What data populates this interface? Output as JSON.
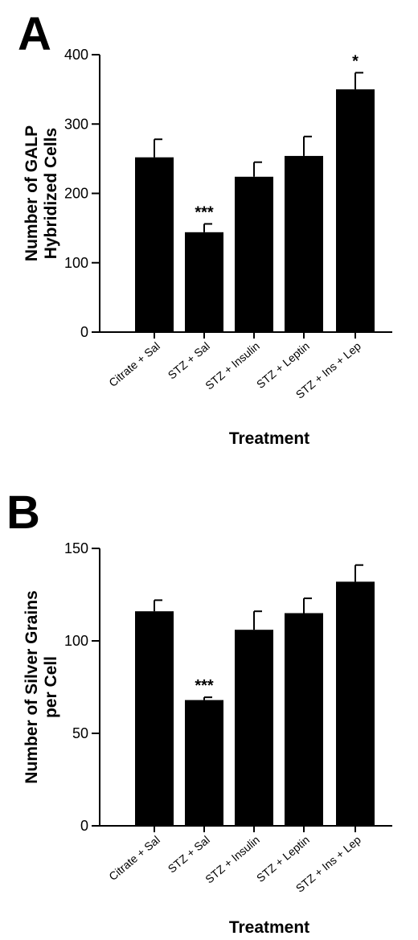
{
  "chart_data": [
    {
      "panel": "A",
      "type": "bar",
      "categories": [
        "Citrate + Sal",
        "STZ + Sal",
        "STZ + Insulin",
        "STZ + Leptin",
        "STZ + Ins + Lep"
      ],
      "values": [
        252,
        144,
        224,
        254,
        350
      ],
      "errors": [
        26,
        12,
        21,
        28,
        24
      ],
      "significance": [
        "",
        "***",
        "",
        "",
        "*"
      ],
      "xlabel": "Treatment",
      "ylabel": [
        "Number of GALP",
        "Hybridized Cells"
      ],
      "ylim": [
        0,
        400
      ],
      "yticks": [
        0,
        100,
        200,
        300,
        400
      ],
      "grid": false,
      "colors": {
        "bar": "#000000"
      }
    },
    {
      "panel": "B",
      "type": "bar",
      "categories": [
        "Citrate + Sal",
        "STZ + Sal",
        "STZ + Insulin",
        "STZ + Leptin",
        "STZ + Ins + Lep"
      ],
      "values": [
        116,
        68,
        106,
        115,
        132
      ],
      "errors": [
        6,
        1.5,
        10,
        8,
        9
      ],
      "significance": [
        "",
        "***",
        "",
        "",
        ""
      ],
      "xlabel": "Treatment",
      "ylabel": [
        "Number of Silver Grains",
        "per Cell"
      ],
      "ylim": [
        0,
        150
      ],
      "yticks": [
        0,
        50,
        100,
        150
      ],
      "grid": false,
      "colors": {
        "bar": "#000000"
      }
    }
  ]
}
